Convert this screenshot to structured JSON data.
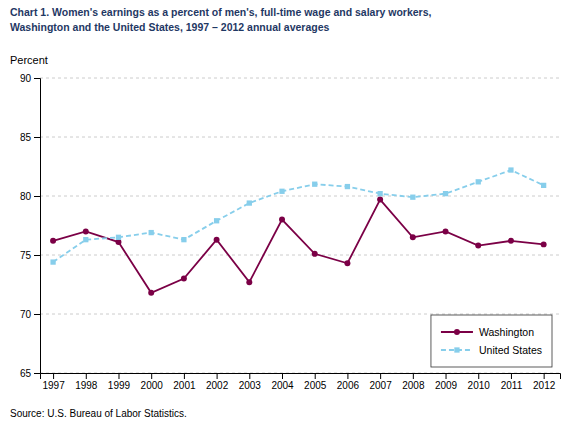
{
  "chart_data": {
    "type": "line",
    "title": "Chart 1. Women's earnings as a percent of men's, full-time wage and salary workers,",
    "subtitle": "Washington and the United States, 1997 – 2012 annual averages",
    "y_label": "Percent",
    "source": "Source: U.S.  Bureau of Labor Statistics.",
    "x": [
      1997,
      1998,
      1999,
      2000,
      2001,
      2002,
      2003,
      2004,
      2005,
      2006,
      2007,
      2008,
      2009,
      2010,
      2011,
      2012
    ],
    "xlim": [
      1996.6,
      2012.5
    ],
    "xticks": [
      1997,
      1998,
      1999,
      2000,
      2001,
      2002,
      2003,
      2004,
      2005,
      2006,
      2007,
      2008,
      2009,
      2010,
      2011,
      2012
    ],
    "ylim": [
      65,
      90
    ],
    "yticks": [
      65,
      70,
      75,
      80,
      85,
      90
    ],
    "grid": true,
    "legend": "lower right",
    "series": [
      {
        "name": "Washington",
        "color": "#7B0046",
        "marker": "circle",
        "line_style": "solid",
        "values": [
          76.2,
          77.0,
          76.1,
          71.8,
          73.0,
          76.3,
          72.7,
          78.0,
          75.1,
          74.3,
          79.7,
          76.5,
          77.0,
          75.8,
          76.2,
          75.9
        ]
      },
      {
        "name": "United States",
        "color": "#87CEEB",
        "marker": "square",
        "line_style": "dashed",
        "values": [
          74.4,
          76.3,
          76.5,
          76.9,
          76.3,
          77.9,
          79.4,
          80.4,
          81.0,
          80.8,
          80.2,
          79.9,
          80.2,
          81.2,
          82.2,
          80.9
        ]
      }
    ]
  }
}
